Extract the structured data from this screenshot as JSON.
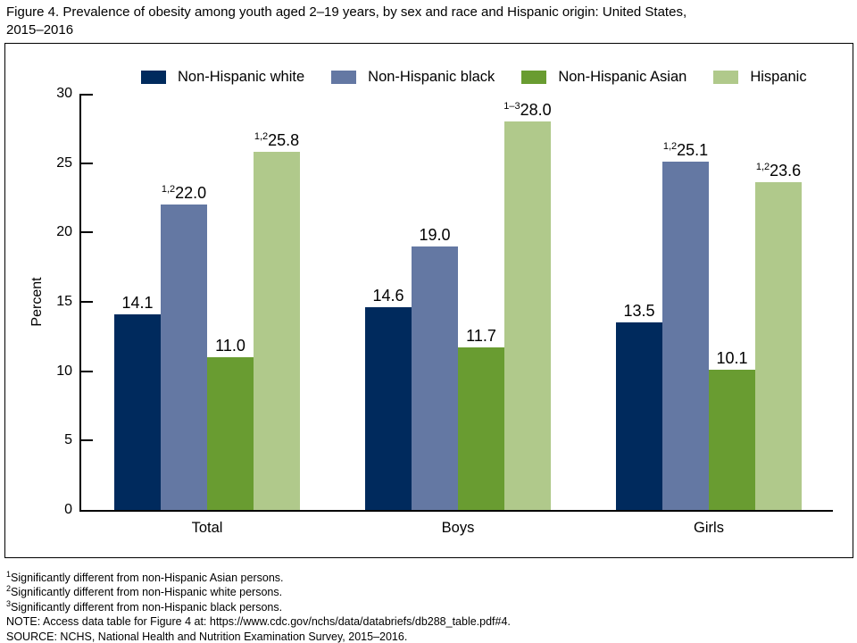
{
  "title_lines": [
    "Figure 4. Prevalence of obesity among youth aged 2–19 years, by sex and race and Hispanic origin: United States,",
    "2015–2016"
  ],
  "chart_data": {
    "type": "bar",
    "title": "Prevalence of obesity among youth aged 2–19 years, by sex and race and Hispanic origin: United States, 2015–2016",
    "categories": [
      "Total",
      "Boys",
      "Girls"
    ],
    "series": [
      {
        "name": "Non-Hispanic white",
        "color": "#002a5d",
        "values": [
          14.1,
          14.6,
          13.5
        ],
        "sups": [
          "",
          "",
          ""
        ]
      },
      {
        "name": "Non-Hispanic black",
        "color": "#6478a3",
        "values": [
          22.0,
          19.0,
          25.1
        ],
        "sups": [
          "1,2",
          "",
          "1,2"
        ]
      },
      {
        "name": "Non-Hispanic Asian",
        "color": "#699c31",
        "values": [
          11.0,
          11.7,
          10.1
        ],
        "sups": [
          "",
          "",
          ""
        ]
      },
      {
        "name": "Hispanic",
        "color": "#b0c98b",
        "values": [
          25.8,
          28.0,
          23.6
        ],
        "sups": [
          "1,2",
          "1–3",
          "1,2"
        ]
      }
    ],
    "xlabel": "",
    "ylabel": "Percent",
    "ylim": [
      0,
      30
    ],
    "yticks": [
      0,
      5,
      10,
      15,
      20,
      25,
      30
    ],
    "grid": "off",
    "legend_position": "top"
  },
  "footnotes": [
    {
      "sup": "1",
      "text": "Significantly different from non-Hispanic Asian persons."
    },
    {
      "sup": "2",
      "text": "Significantly different from non-Hispanic white persons."
    },
    {
      "sup": "3",
      "text": "Significantly different from non-Hispanic black persons."
    },
    {
      "sup": "",
      "text": "NOTE: Access data table for Figure 4 at: https://www.cdc.gov/nchs/data/databriefs/db288_table.pdf#4."
    },
    {
      "sup": "",
      "text": "SOURCE: NCHS, National Health and Nutrition Examination Survey, 2015–2016."
    }
  ]
}
